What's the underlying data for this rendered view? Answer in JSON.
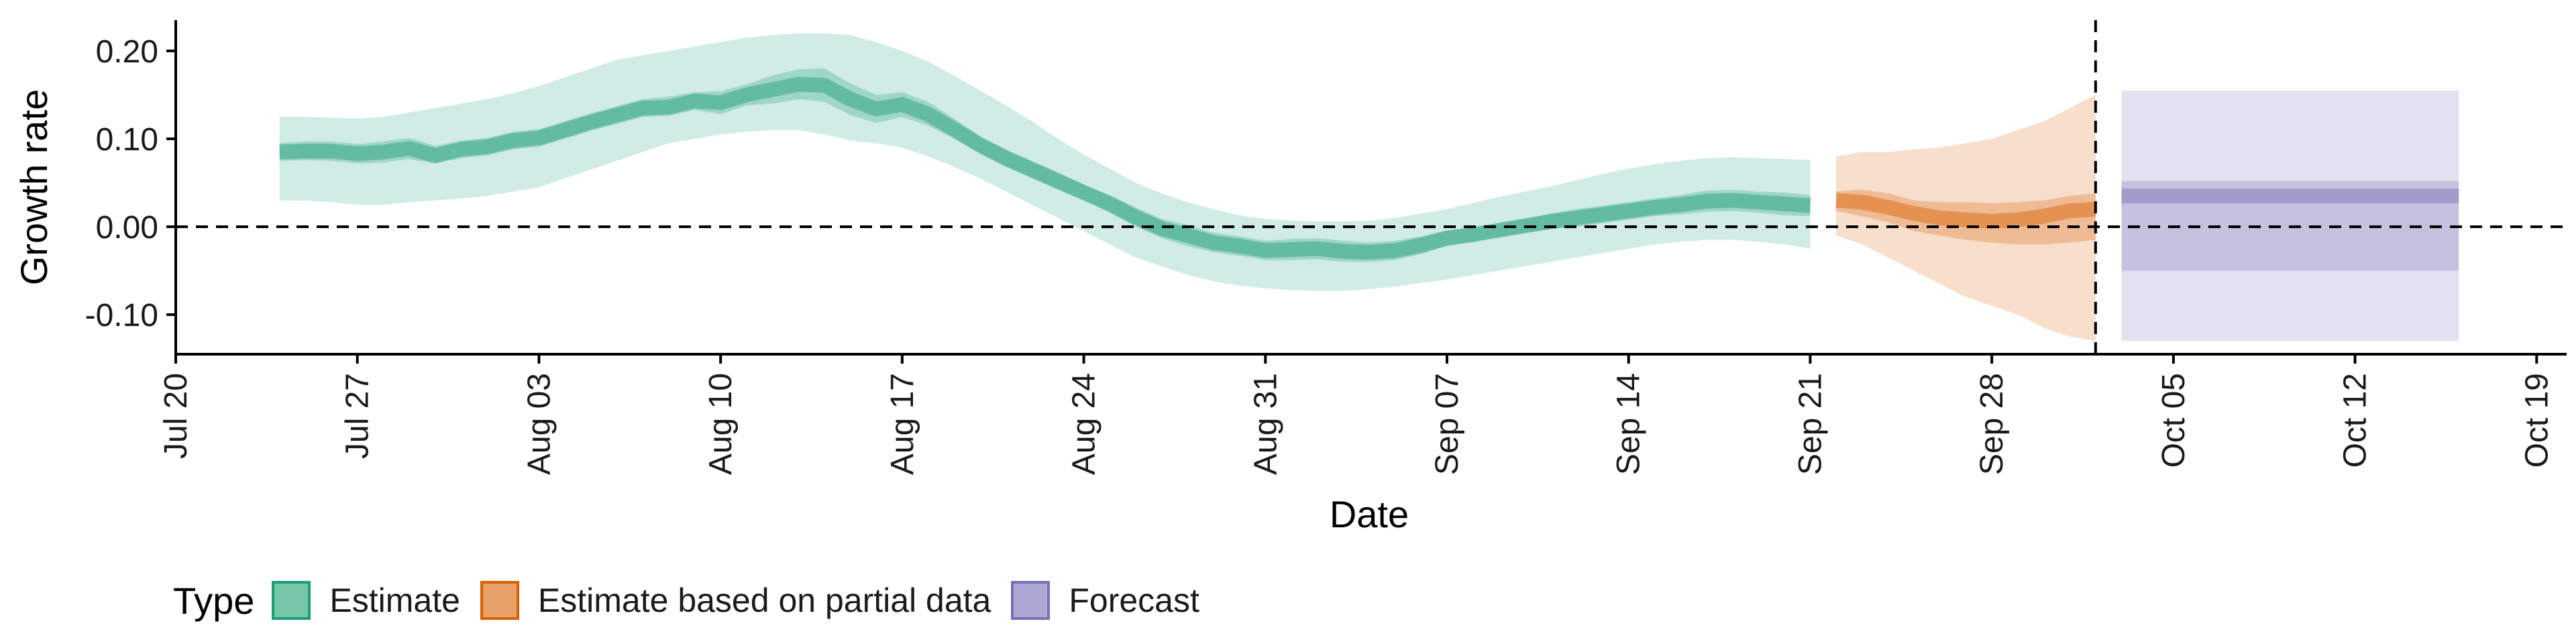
{
  "chart_data": {
    "type": "area",
    "title": "",
    "xlabel": "Date",
    "ylabel": "Growth rate",
    "x_type": "date",
    "xlim": [
      "2020-07-20",
      "2020-10-20"
    ],
    "ylim": [
      -0.145,
      0.235
    ],
    "x_ticks": [
      {
        "date": "2020-07-20",
        "label": "Jul 20"
      },
      {
        "date": "2020-07-27",
        "label": "Jul 27"
      },
      {
        "date": "2020-08-03",
        "label": "Aug 03"
      },
      {
        "date": "2020-08-10",
        "label": "Aug 10"
      },
      {
        "date": "2020-08-17",
        "label": "Aug 17"
      },
      {
        "date": "2020-08-24",
        "label": "Aug 24"
      },
      {
        "date": "2020-08-31",
        "label": "Aug 31"
      },
      {
        "date": "2020-09-07",
        "label": "Sep 07"
      },
      {
        "date": "2020-09-14",
        "label": "Sep 14"
      },
      {
        "date": "2020-09-21",
        "label": "Sep 21"
      },
      {
        "date": "2020-09-28",
        "label": "Sep 28"
      },
      {
        "date": "2020-10-05",
        "label": "Oct 05"
      },
      {
        "date": "2020-10-12",
        "label": "Oct 12"
      },
      {
        "date": "2020-10-19",
        "label": "Oct 19"
      }
    ],
    "y_ticks": [
      {
        "value": 0.2,
        "label": "0.20"
      },
      {
        "value": 0.1,
        "label": "0.10"
      },
      {
        "value": 0.0,
        "label": "0.00"
      },
      {
        "value": -0.1,
        "label": "-0.10"
      }
    ],
    "reference_lines": [
      {
        "orientation": "horizontal",
        "value": 0.0,
        "style": "dashed"
      },
      {
        "orientation": "vertical",
        "value": "2020-10-02",
        "style": "dashed"
      }
    ],
    "legend_title": "Type",
    "legend_position": "bottom",
    "series": [
      {
        "name": "Estimate",
        "fill": "#1b9e77",
        "stroke": "#1b9e77",
        "legend_fill": "#75c5a9",
        "x": [
          "2020-07-24",
          "2020-07-25",
          "2020-07-26",
          "2020-07-27",
          "2020-07-28",
          "2020-07-29",
          "2020-07-30",
          "2020-07-31",
          "2020-08-01",
          "2020-08-02",
          "2020-08-03",
          "2020-08-04",
          "2020-08-05",
          "2020-08-06",
          "2020-08-07",
          "2020-08-08",
          "2020-08-09",
          "2020-08-10",
          "2020-08-11",
          "2020-08-12",
          "2020-08-13",
          "2020-08-14",
          "2020-08-15",
          "2020-08-16",
          "2020-08-17",
          "2020-08-18",
          "2020-08-19",
          "2020-08-20",
          "2020-08-21",
          "2020-08-22",
          "2020-08-23",
          "2020-08-24",
          "2020-08-25",
          "2020-08-26",
          "2020-08-27",
          "2020-08-28",
          "2020-08-29",
          "2020-08-30",
          "2020-08-31",
          "2020-09-01",
          "2020-09-02",
          "2020-09-03",
          "2020-09-04",
          "2020-09-05",
          "2020-09-06",
          "2020-09-07",
          "2020-09-08",
          "2020-09-09",
          "2020-09-10",
          "2020-09-11",
          "2020-09-12",
          "2020-09-13",
          "2020-09-14",
          "2020-09-15",
          "2020-09-16",
          "2020-09-17",
          "2020-09-18",
          "2020-09-19",
          "2020-09-20",
          "2020-09-21"
        ],
        "median": [
          0.085,
          0.086,
          0.086,
          0.083,
          0.085,
          0.089,
          0.081,
          0.088,
          0.091,
          0.098,
          0.101,
          0.11,
          0.119,
          0.127,
          0.135,
          0.136,
          0.143,
          0.141,
          0.15,
          0.156,
          0.162,
          0.161,
          0.145,
          0.134,
          0.139,
          0.128,
          0.111,
          0.093,
          0.078,
          0.065,
          0.052,
          0.039,
          0.026,
          0.011,
          -0.002,
          -0.01,
          -0.018,
          -0.022,
          -0.027,
          -0.026,
          -0.025,
          -0.028,
          -0.029,
          -0.027,
          -0.021,
          -0.013,
          -0.009,
          -0.004,
          0.001,
          0.006,
          0.01,
          0.014,
          0.018,
          0.022,
          0.025,
          0.029,
          0.03,
          0.028,
          0.026,
          0.024
        ],
        "lower_50": [
          0.075,
          0.076,
          0.075,
          0.072,
          0.073,
          0.077,
          0.072,
          0.078,
          0.081,
          0.088,
          0.091,
          0.1,
          0.109,
          0.117,
          0.125,
          0.126,
          0.133,
          0.128,
          0.138,
          0.14,
          0.145,
          0.142,
          0.127,
          0.118,
          0.125,
          0.115,
          0.1,
          0.083,
          0.068,
          0.055,
          0.042,
          0.03,
          0.016,
          0.0,
          -0.013,
          -0.022,
          -0.029,
          -0.033,
          -0.038,
          -0.038,
          -0.037,
          -0.04,
          -0.04,
          -0.038,
          -0.031,
          -0.022,
          -0.017,
          -0.012,
          -0.007,
          -0.003,
          0.0,
          0.004,
          0.008,
          0.012,
          0.014,
          0.017,
          0.018,
          0.016,
          0.013,
          0.012
        ],
        "upper_50": [
          0.095,
          0.097,
          0.097,
          0.094,
          0.097,
          0.101,
          0.092,
          0.098,
          0.101,
          0.108,
          0.111,
          0.12,
          0.129,
          0.137,
          0.145,
          0.148,
          0.153,
          0.154,
          0.162,
          0.172,
          0.179,
          0.18,
          0.163,
          0.15,
          0.153,
          0.142,
          0.123,
          0.103,
          0.088,
          0.075,
          0.062,
          0.048,
          0.036,
          0.022,
          0.009,
          0.002,
          -0.007,
          -0.011,
          -0.016,
          -0.014,
          -0.013,
          -0.016,
          -0.018,
          -0.016,
          -0.011,
          -0.004,
          -0.001,
          0.004,
          0.009,
          0.015,
          0.02,
          0.024,
          0.028,
          0.032,
          0.036,
          0.041,
          0.042,
          0.04,
          0.039,
          0.036
        ],
        "lower_90": [
          0.03,
          0.03,
          0.028,
          0.025,
          0.025,
          0.028,
          0.03,
          0.032,
          0.035,
          0.04,
          0.045,
          0.055,
          0.065,
          0.075,
          0.085,
          0.095,
          0.1,
          0.105,
          0.108,
          0.11,
          0.11,
          0.105,
          0.098,
          0.095,
          0.09,
          0.08,
          0.068,
          0.055,
          0.04,
          0.025,
          0.01,
          -0.005,
          -0.02,
          -0.035,
          -0.045,
          -0.055,
          -0.062,
          -0.067,
          -0.07,
          -0.072,
          -0.073,
          -0.073,
          -0.071,
          -0.068,
          -0.064,
          -0.06,
          -0.055,
          -0.05,
          -0.045,
          -0.04,
          -0.035,
          -0.03,
          -0.025,
          -0.02,
          -0.017,
          -0.015,
          -0.015,
          -0.017,
          -0.02,
          -0.025
        ],
        "upper_90": [
          0.125,
          0.125,
          0.124,
          0.123,
          0.125,
          0.13,
          0.135,
          0.14,
          0.145,
          0.152,
          0.16,
          0.17,
          0.18,
          0.19,
          0.195,
          0.2,
          0.205,
          0.21,
          0.215,
          0.218,
          0.22,
          0.22,
          0.218,
          0.21,
          0.2,
          0.188,
          0.172,
          0.155,
          0.138,
          0.12,
          0.1,
          0.082,
          0.066,
          0.05,
          0.038,
          0.028,
          0.02,
          0.013,
          0.009,
          0.007,
          0.006,
          0.006,
          0.007,
          0.01,
          0.015,
          0.02,
          0.027,
          0.034,
          0.04,
          0.046,
          0.053,
          0.06,
          0.066,
          0.071,
          0.075,
          0.078,
          0.079,
          0.078,
          0.077,
          0.076
        ]
      },
      {
        "name": "Estimate based on partial data",
        "fill": "#d95f02",
        "stroke": "#d95f02",
        "legend_fill": "#e8a066",
        "x": [
          "2020-09-22",
          "2020-09-23",
          "2020-09-24",
          "2020-09-25",
          "2020-09-26",
          "2020-09-27",
          "2020-09-28",
          "2020-09-29",
          "2020-09-30",
          "2020-10-01",
          "2020-10-02"
        ],
        "median": [
          0.03,
          0.028,
          0.022,
          0.015,
          0.01,
          0.008,
          0.006,
          0.008,
          0.012,
          0.018,
          0.02
        ],
        "lower_50": [
          0.018,
          0.012,
          0.005,
          -0.005,
          -0.01,
          -0.015,
          -0.018,
          -0.02,
          -0.02,
          -0.018,
          -0.015
        ],
        "upper_50": [
          0.04,
          0.042,
          0.038,
          0.03,
          0.028,
          0.028,
          0.027,
          0.028,
          0.03,
          0.035,
          0.038
        ],
        "lower_90": [
          -0.01,
          -0.02,
          -0.035,
          -0.05,
          -0.065,
          -0.08,
          -0.09,
          -0.1,
          -0.115,
          -0.125,
          -0.13
        ],
        "upper_90": [
          0.08,
          0.085,
          0.085,
          0.088,
          0.09,
          0.095,
          0.1,
          0.11,
          0.12,
          0.135,
          0.15
        ]
      },
      {
        "name": "Forecast",
        "fill": "#7570b3",
        "stroke": "#7570b3",
        "legend_fill": "#aba8d3",
        "x": [
          "2020-10-03",
          "2020-10-04",
          "2020-10-05",
          "2020-10-06",
          "2020-10-07",
          "2020-10-08",
          "2020-10-09",
          "2020-10-10",
          "2020-10-11",
          "2020-10-12",
          "2020-10-13",
          "2020-10-14",
          "2020-10-15",
          "2020-10-16"
        ],
        "median": [
          0.035,
          0.035,
          0.035,
          0.035,
          0.035,
          0.035,
          0.035,
          0.035,
          0.035,
          0.035,
          0.035,
          0.035,
          0.035,
          0.035
        ],
        "lower_50": [
          -0.05,
          -0.05,
          -0.05,
          -0.05,
          -0.05,
          -0.05,
          -0.05,
          -0.05,
          -0.05,
          -0.05,
          -0.05,
          -0.05,
          -0.05,
          -0.05
        ],
        "upper_50": [
          0.052,
          0.052,
          0.052,
          0.052,
          0.052,
          0.052,
          0.052,
          0.052,
          0.052,
          0.052,
          0.052,
          0.052,
          0.052,
          0.052
        ],
        "lower_90": [
          -0.13,
          -0.13,
          -0.13,
          -0.13,
          -0.13,
          -0.13,
          -0.13,
          -0.13,
          -0.13,
          -0.13,
          -0.13,
          -0.13,
          -0.13,
          -0.13
        ],
        "upper_90": [
          0.155,
          0.155,
          0.155,
          0.155,
          0.155,
          0.155,
          0.155,
          0.155,
          0.155,
          0.155,
          0.155,
          0.155,
          0.155,
          0.155
        ]
      }
    ]
  }
}
